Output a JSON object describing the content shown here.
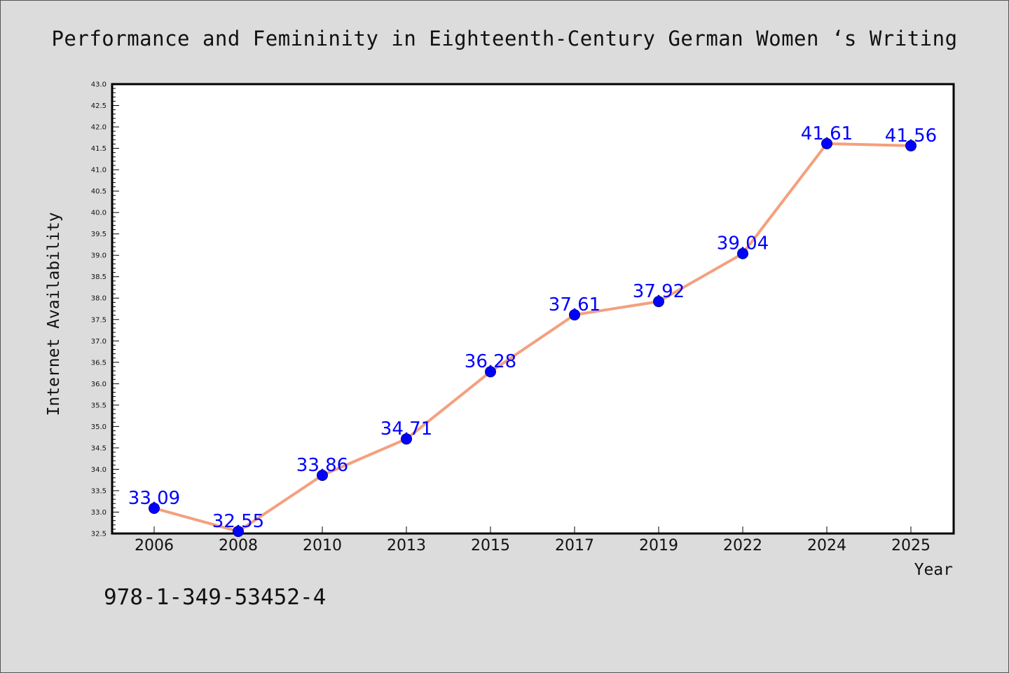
{
  "chart_data": {
    "type": "line",
    "title": "Performance and Femininity in Eighteenth-Century German Women ‘s Writing",
    "xlabel": "Year",
    "ylabel": "Internet Availability",
    "categories": [
      "2006",
      "2008",
      "2010",
      "2013",
      "2015",
      "2017",
      "2019",
      "2022",
      "2024",
      "2025"
    ],
    "series": [
      {
        "values": [
          33.09,
          32.55,
          33.86,
          34.71,
          36.28,
          37.61,
          37.92,
          39.04,
          41.61,
          41.56
        ],
        "labels": [
          "33.09",
          "32.55",
          "33.86",
          "34.71",
          "36.28",
          "37.61",
          "37.92",
          "39.04",
          "41.61",
          "41.56"
        ]
      }
    ],
    "ylim": [
      32.5,
      43.0
    ],
    "ytick_labels": [
      "32.5",
      "33.0",
      "33.5",
      "34.0",
      "34.5",
      "35.0",
      "35.5",
      "36.0",
      "36.5",
      "37.0",
      "37.5",
      "38.0",
      "38.5",
      "39.0",
      "39.5",
      "40.0",
      "40.5",
      "41.0",
      "41.5",
      "42.0",
      "42.5",
      "43.0"
    ],
    "grid": false,
    "colors": {
      "line": "#f4a07e",
      "marker": "#0000ff",
      "data_label": "#0000ff",
      "background": "#dcdcdc",
      "plot_background": "#ffffff"
    }
  },
  "footer": {
    "isbn": "978-1-349-53452-4"
  }
}
